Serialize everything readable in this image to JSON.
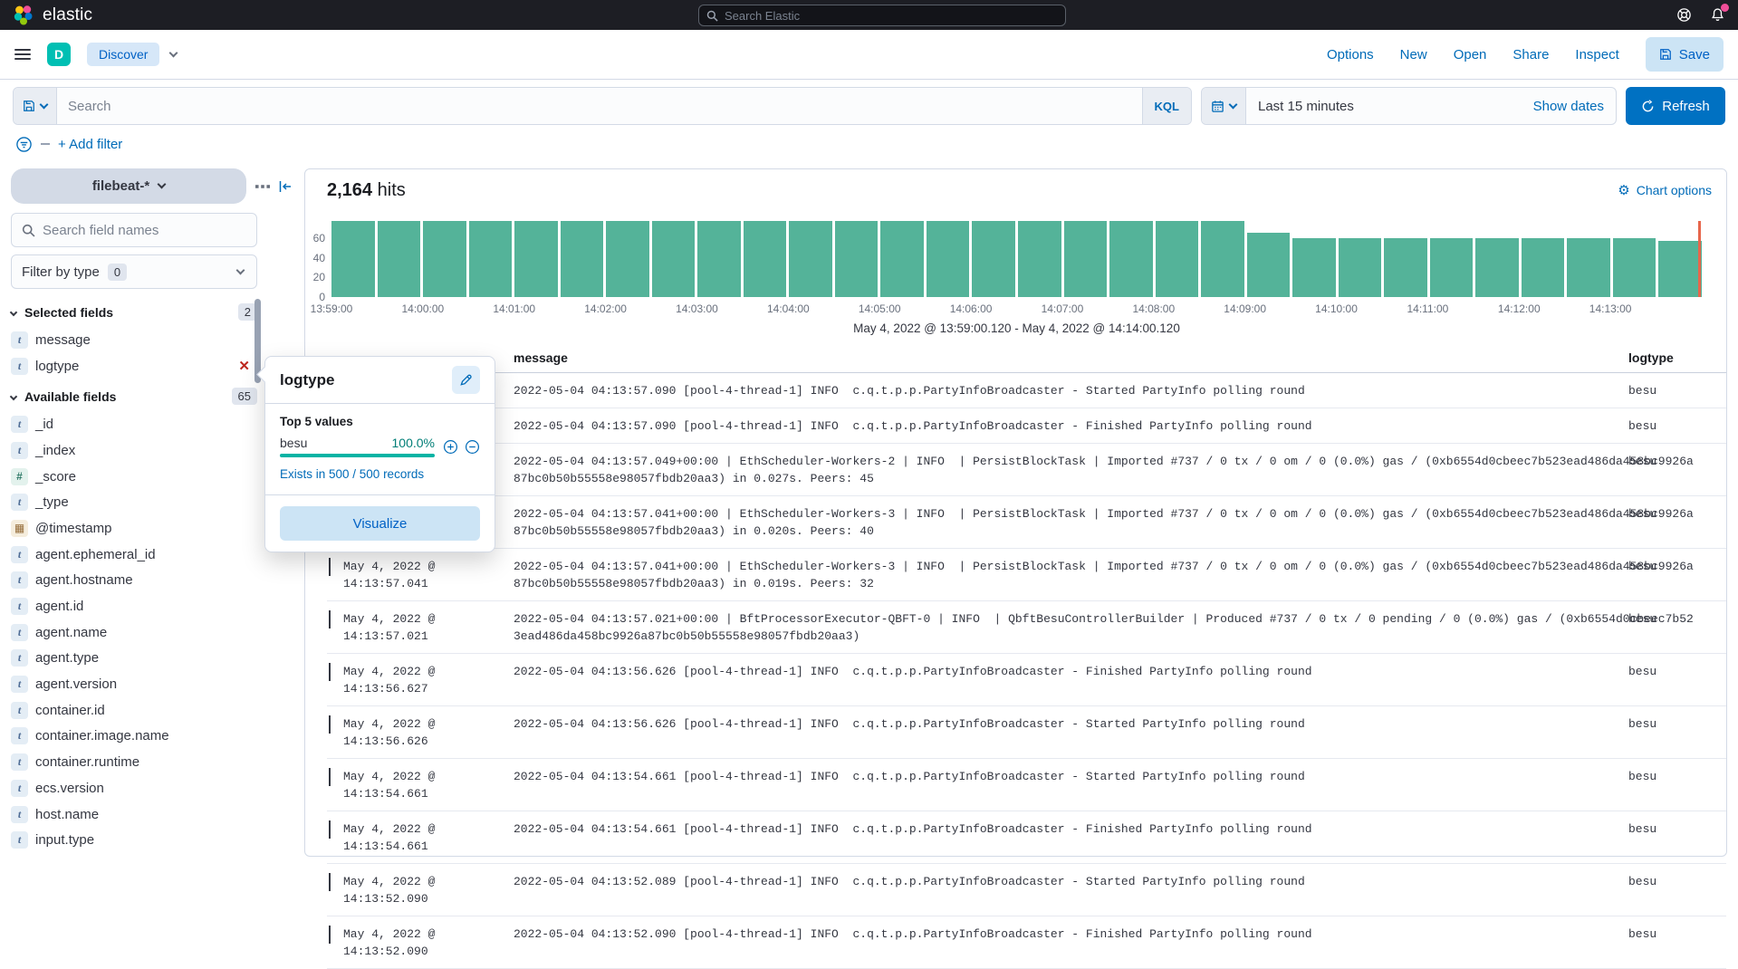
{
  "header": {
    "brand": "elastic",
    "search_placeholder": "Search Elastic"
  },
  "toolbar": {
    "app_badge": "D",
    "breadcrumb": "Discover",
    "links": [
      "Options",
      "New",
      "Open",
      "Share",
      "Inspect"
    ],
    "save_label": "Save"
  },
  "query_bar": {
    "search_placeholder": "Search",
    "language_label": "KQL",
    "time_range": "Last 15 minutes",
    "show_dates_label": "Show dates",
    "refresh_label": "Refresh"
  },
  "filter_bar": {
    "add_filter_label": "+ Add filter"
  },
  "sidebar": {
    "index_pattern": "filebeat-*",
    "field_search_placeholder": "Search field names",
    "filter_by_type_label": "Filter by type",
    "filter_by_type_count": "0",
    "selected_fields": {
      "label": "Selected fields",
      "count": "2",
      "items": [
        {
          "type": "t",
          "name": "message"
        },
        {
          "type": "t",
          "name": "logtype",
          "has_close": true
        }
      ]
    },
    "available_fields": {
      "label": "Available fields",
      "count": "65",
      "items": [
        {
          "type": "t",
          "name": "_id"
        },
        {
          "type": "t",
          "name": "_index"
        },
        {
          "type": "num",
          "name": "_score"
        },
        {
          "type": "t",
          "name": "_type"
        },
        {
          "type": "cal",
          "name": "@timestamp"
        },
        {
          "type": "t",
          "name": "agent.ephemeral_id"
        },
        {
          "type": "t",
          "name": "agent.hostname"
        },
        {
          "type": "t",
          "name": "agent.id"
        },
        {
          "type": "t",
          "name": "agent.name"
        },
        {
          "type": "t",
          "name": "agent.type"
        },
        {
          "type": "t",
          "name": "agent.version"
        },
        {
          "type": "t",
          "name": "container.id"
        },
        {
          "type": "t",
          "name": "container.image.name"
        },
        {
          "type": "t",
          "name": "container.runtime"
        },
        {
          "type": "t",
          "name": "ecs.version"
        },
        {
          "type": "t",
          "name": "host.name"
        },
        {
          "type": "t",
          "name": "input.type"
        }
      ]
    }
  },
  "popover": {
    "title": "logtype",
    "top_values_label": "Top 5 values",
    "values": [
      {
        "name": "besu",
        "percent": "100.0%",
        "fraction": 1.0
      }
    ],
    "exists_label": "Exists in 500 / 500 records",
    "visualize_label": "Visualize"
  },
  "main": {
    "hits_count": "2,164",
    "hits_label": "hits",
    "chart_options_label": "Chart options",
    "time_caption": "May 4, 2022 @ 13:59:00.120 - May 4, 2022 @ 14:14:00.120"
  },
  "chart_data": {
    "type": "bar",
    "x": [
      "13:59:00",
      "13:59:30",
      "14:00:00",
      "14:00:30",
      "14:01:00",
      "14:01:30",
      "14:02:00",
      "14:02:30",
      "14:03:00",
      "14:03:30",
      "14:04:00",
      "14:04:30",
      "14:05:00",
      "14:05:30",
      "14:06:00",
      "14:06:30",
      "14:07:00",
      "14:07:30",
      "14:08:00",
      "14:08:30",
      "14:09:00",
      "14:09:30",
      "14:10:00",
      "14:10:30",
      "14:11:00",
      "14:11:30",
      "14:12:00",
      "14:12:30",
      "14:13:00",
      "14:13:30"
    ],
    "values": [
      78,
      78,
      78,
      78,
      78,
      78,
      78,
      78,
      78,
      78,
      78,
      78,
      78,
      78,
      78,
      78,
      78,
      78,
      78,
      78,
      66,
      60,
      60,
      60,
      60,
      60,
      60,
      60,
      60,
      58
    ],
    "x_tick_labels": [
      "13:59:00",
      "14:00:00",
      "14:01:00",
      "14:02:00",
      "14:03:00",
      "14:04:00",
      "14:05:00",
      "14:06:00",
      "14:07:00",
      "14:08:00",
      "14:09:00",
      "14:10:00",
      "14:11:00",
      "14:12:00",
      "14:13:00"
    ],
    "y_ticks": [
      0,
      20,
      40,
      60
    ],
    "ylim": [
      0,
      78
    ],
    "title": "",
    "xlabel": "",
    "ylabel": "",
    "bar_color": "#54B399",
    "marker_color": "#E7664C",
    "legend": false
  },
  "table": {
    "columns": [
      "message",
      "logtype"
    ],
    "rows": [
      {
        "time": "",
        "lines": [
          "2022-05-04 04:13:57.090 [pool-4-thread-1] INFO  c.q.t.p.p.PartyInfoBroadcaster - Started PartyInfo polling round"
        ],
        "logtype": "besu"
      },
      {
        "time": "",
        "lines": [
          "2022-05-04 04:13:57.090 [pool-4-thread-1] INFO  c.q.t.p.p.PartyInfoBroadcaster - Finished PartyInfo polling round"
        ],
        "logtype": "besu"
      },
      {
        "time": "",
        "lines": [
          "2022-05-04 04:13:57.049+00:00 | EthScheduler-Workers-2 | INFO  | PersistBlockTask | Imported #737 / 0 tx / 0 om / 0 (0.0%) gas / (0xb6554d0cbeec7b523ead486da458bc9926a",
          "87bc0b50b55558e98057fbdb20aa3) in 0.027s. Peers: 45"
        ],
        "logtype": "besu"
      },
      {
        "time": "",
        "lines": [
          "2022-05-04 04:13:57.041+00:00 | EthScheduler-Workers-3 | INFO  | PersistBlockTask | Imported #737 / 0 tx / 0 om / 0 (0.0%) gas / (0xb6554d0cbeec7b523ead486da458bc9926a",
          "87bc0b50b55558e98057fbdb20aa3) in 0.020s. Peers: 40"
        ],
        "logtype": "besu"
      },
      {
        "time": "May 4, 2022 @ 14:13:57.041",
        "lines": [
          "2022-05-04 04:13:57.041+00:00 | EthScheduler-Workers-3 | INFO  | PersistBlockTask | Imported #737 / 0 tx / 0 om / 0 (0.0%) gas / (0xb6554d0cbeec7b523ead486da458bc9926a",
          "87bc0b50b55558e98057fbdb20aa3) in 0.019s. Peers: 32"
        ],
        "logtype": "besu"
      },
      {
        "time": "May 4, 2022 @ 14:13:57.021",
        "lines": [
          "2022-05-04 04:13:57.021+00:00 | BftProcessorExecutor-QBFT-0 | INFO  | QbftBesuControllerBuilder | Produced #737 / 0 tx / 0 pending / 0 (0.0%) gas / (0xb6554d0cbeec7b52",
          "3ead486da458bc9926a87bc0b50b55558e98057fbdb20aa3)"
        ],
        "logtype": "besu"
      },
      {
        "time": "May 4, 2022 @ 14:13:56.627",
        "lines": [
          "2022-05-04 04:13:56.626 [pool-4-thread-1] INFO  c.q.t.p.p.PartyInfoBroadcaster - Finished PartyInfo polling round"
        ],
        "logtype": "besu"
      },
      {
        "time": "May 4, 2022 @ 14:13:56.626",
        "lines": [
          "2022-05-04 04:13:56.626 [pool-4-thread-1] INFO  c.q.t.p.p.PartyInfoBroadcaster - Started PartyInfo polling round"
        ],
        "logtype": "besu"
      },
      {
        "time": "May 4, 2022 @ 14:13:54.661",
        "lines": [
          "2022-05-04 04:13:54.661 [pool-4-thread-1] INFO  c.q.t.p.p.PartyInfoBroadcaster - Started PartyInfo polling round"
        ],
        "logtype": "besu"
      },
      {
        "time": "May 4, 2022 @ 14:13:54.661",
        "lines": [
          "2022-05-04 04:13:54.661 [pool-4-thread-1] INFO  c.q.t.p.p.PartyInfoBroadcaster - Finished PartyInfo polling round"
        ],
        "logtype": "besu"
      },
      {
        "time": "May 4, 2022 @ 14:13:52.090",
        "lines": [
          "2022-05-04 04:13:52.089 [pool-4-thread-1] INFO  c.q.t.p.p.PartyInfoBroadcaster - Started PartyInfo polling round"
        ],
        "logtype": "besu"
      },
      {
        "time": "May 4, 2022 @ 14:13:52.090",
        "lines": [
          "2022-05-04 04:13:52.090 [pool-4-thread-1] INFO  c.q.t.p.p.PartyInfoBroadcaster - Finished PartyInfo polling round"
        ],
        "logtype": "besu"
      }
    ]
  },
  "colors": {
    "topbar_bg": "#1D1E24",
    "link_blue": "#006BB8",
    "button_blue": "#0071C2",
    "bar_green": "#54B399",
    "teal": "#00B3A4",
    "danger_red": "#BD271E",
    "marker_red": "#E7664C"
  }
}
